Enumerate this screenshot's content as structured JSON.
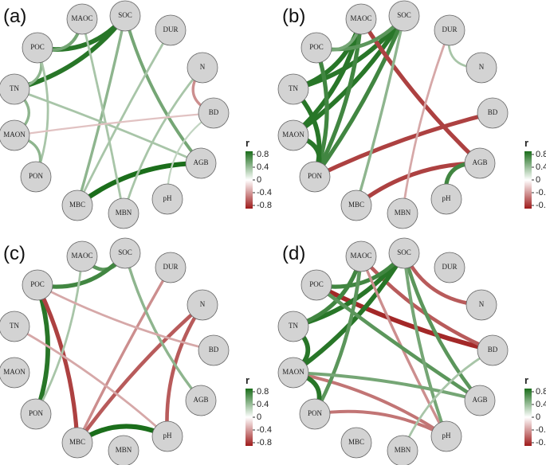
{
  "nodes": [
    "SOC",
    "MAOC",
    "POC",
    "TN",
    "MAON",
    "PON",
    "MBC",
    "MBN",
    "pH",
    "AGB",
    "BD",
    "N",
    "DUR"
  ],
  "colorbar": {
    "title": "r",
    "ticks": [
      0.8,
      0.4,
      0,
      -0.4,
      -0.8
    ]
  },
  "panels": [
    {
      "label": "(a)",
      "edges": [
        {
          "from": "SOC",
          "to": "POC",
          "r": 0.8
        },
        {
          "from": "SOC",
          "to": "TN",
          "r": 0.8
        },
        {
          "from": "MBC",
          "to": "AGB",
          "r": 0.85
        },
        {
          "from": "SOC",
          "to": "AGB",
          "r": 0.5
        },
        {
          "from": "MAOC",
          "to": "POC",
          "r": 0.5
        },
        {
          "from": "POC",
          "to": "TN",
          "r": 0.4
        },
        {
          "from": "SOC",
          "to": "MBC",
          "r": 0.4
        },
        {
          "from": "POC",
          "to": "PON",
          "r": 0.3
        },
        {
          "from": "TN",
          "to": "MAON",
          "r": 0.4
        },
        {
          "from": "MAON",
          "to": "PON",
          "r": 0.4
        },
        {
          "from": "N",
          "to": "BD",
          "r": -0.4
        },
        {
          "from": "MAOC",
          "to": "MBN",
          "r": 0.3
        },
        {
          "from": "DUR",
          "to": "MBC",
          "r": 0.3
        },
        {
          "from": "TN",
          "to": "AGB",
          "r": 0.3
        },
        {
          "from": "pH",
          "to": "BD",
          "r": 0.2
        },
        {
          "from": "MBN",
          "to": "N",
          "r": 0.3
        },
        {
          "from": "MAON",
          "to": "BD",
          "r": -0.2
        }
      ]
    },
    {
      "label": "(b)",
      "edges": [
        {
          "from": "SOC",
          "to": "TN",
          "r": 0.8
        },
        {
          "from": "SOC",
          "to": "MAON",
          "r": 0.8
        },
        {
          "from": "SOC",
          "to": "PON",
          "r": 0.7
        },
        {
          "from": "MAOC",
          "to": "TN",
          "r": 0.8
        },
        {
          "from": "MAOC",
          "to": "MAON",
          "r": 0.8
        },
        {
          "from": "MAOC",
          "to": "PON",
          "r": 0.7
        },
        {
          "from": "POC",
          "to": "PON",
          "r": 0.7
        },
        {
          "from": "TN",
          "to": "PON",
          "r": 0.8
        },
        {
          "from": "MAON",
          "to": "PON",
          "r": 0.8
        },
        {
          "from": "MAOC",
          "to": "AGB",
          "r": -0.7
        },
        {
          "from": "BD",
          "to": "PON",
          "r": -0.7
        },
        {
          "from": "AGB",
          "to": "MBC",
          "r": -0.7
        },
        {
          "from": "pH",
          "to": "AGB",
          "r": 0.7
        },
        {
          "from": "SOC",
          "to": "POC",
          "r": 0.6
        },
        {
          "from": "POC",
          "to": "MAOC",
          "r": 0.5
        },
        {
          "from": "SOC",
          "to": "MBC",
          "r": 0.4
        },
        {
          "from": "MBN",
          "to": "DUR",
          "r": -0.3
        },
        {
          "from": "N",
          "to": "DUR",
          "r": 0.3
        }
      ]
    },
    {
      "label": "(c)",
      "edges": [
        {
          "from": "MAOC",
          "to": "SOC",
          "r": 0.6
        },
        {
          "from": "POC",
          "to": "SOC",
          "r": 0.7
        },
        {
          "from": "POC",
          "to": "PON",
          "r": 0.8
        },
        {
          "from": "POC",
          "to": "MBC",
          "r": -0.7
        },
        {
          "from": "MBC",
          "to": "pH",
          "r": 0.85
        },
        {
          "from": "N",
          "to": "pH",
          "r": -0.6
        },
        {
          "from": "N",
          "to": "MBC",
          "r": -0.6
        },
        {
          "from": "MBC",
          "to": "DUR",
          "r": -0.4
        },
        {
          "from": "SOC",
          "to": "AGB",
          "r": 0.4
        },
        {
          "from": "PON",
          "to": "MAOC",
          "r": 0.3
        },
        {
          "from": "TN",
          "to": "pH",
          "r": -0.3
        },
        {
          "from": "POC",
          "to": "BD",
          "r": -0.3
        }
      ]
    },
    {
      "label": "(d)",
      "edges": [
        {
          "from": "POC",
          "to": "BD",
          "r": -0.8
        },
        {
          "from": "MAOC",
          "to": "BD",
          "r": -0.6
        },
        {
          "from": "SOC",
          "to": "N",
          "r": -0.6
        },
        {
          "from": "MAON",
          "to": "pH",
          "r": -0.5
        },
        {
          "from": "PON",
          "to": "pH",
          "r": -0.5
        },
        {
          "from": "SOC",
          "to": "TN",
          "r": 0.8
        },
        {
          "from": "SOC",
          "to": "MAON",
          "r": 0.8
        },
        {
          "from": "SOC",
          "to": "POC",
          "r": 0.7
        },
        {
          "from": "MAOC",
          "to": "TN",
          "r": 0.7
        },
        {
          "from": "MAOC",
          "to": "PON",
          "r": 0.6
        },
        {
          "from": "TN",
          "to": "MAON",
          "r": 0.8
        },
        {
          "from": "MAON",
          "to": "PON",
          "r": 0.8
        },
        {
          "from": "MAOC",
          "to": "pH",
          "r": -0.4
        },
        {
          "from": "SOC",
          "to": "AGB",
          "r": 0.6
        },
        {
          "from": "POC",
          "to": "AGB",
          "r": 0.6
        },
        {
          "from": "SOC",
          "to": "pH",
          "r": 0.5
        },
        {
          "from": "MAON",
          "to": "AGB",
          "r": 0.5
        },
        {
          "from": "BD",
          "to": "MBN",
          "r": 0.3
        }
      ]
    }
  ]
}
